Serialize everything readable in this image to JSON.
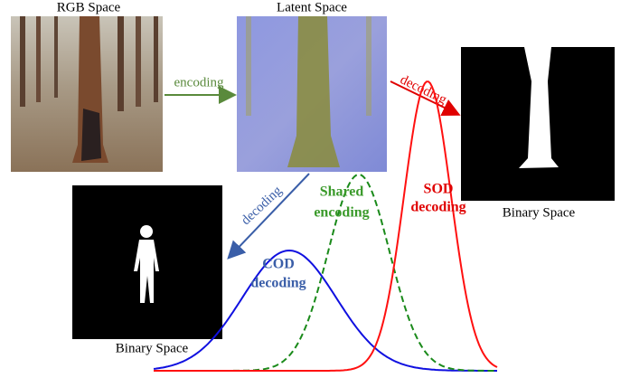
{
  "labels": {
    "rgb_space": "RGB Space",
    "latent_space": "Latent Space",
    "encoding": "encoding",
    "decoding_sod_arrow": "decoding",
    "decoding_cod_arrow": "decoding",
    "binary_space_right": "Binary Space",
    "binary_space_left": "Binary Space",
    "shared_encoding": [
      "Shared",
      "encoding"
    ],
    "sod_decoding": [
      "SOD",
      "decoding"
    ],
    "cod_decoding": [
      "COD",
      "decoding"
    ]
  }
}
